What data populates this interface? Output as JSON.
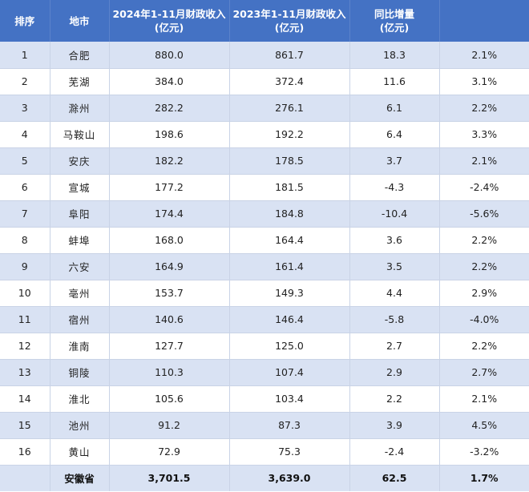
{
  "headers": {
    "rank": "排序",
    "city": "地市",
    "rev2024_line1": "2024年1-11月财政收入",
    "rev2024_line2": "(亿元)",
    "rev2023_line1": "2023年1-11月财政收入",
    "rev2023_line2": "(亿元)",
    "increase_line1": "同比增量",
    "increase_line2": "(亿元)",
    "growth": ""
  },
  "rows": [
    {
      "rank": "1",
      "city": "合肥",
      "rev2024": "880.0",
      "rev2023": "861.7",
      "increase": "18.3",
      "growth": "2.1%"
    },
    {
      "rank": "2",
      "city": "芜湖",
      "rev2024": "384.0",
      "rev2023": "372.4",
      "increase": "11.6",
      "growth": "3.1%"
    },
    {
      "rank": "3",
      "city": "滁州",
      "rev2024": "282.2",
      "rev2023": "276.1",
      "increase": "6.1",
      "growth": "2.2%"
    },
    {
      "rank": "4",
      "city": "马鞍山",
      "rev2024": "198.6",
      "rev2023": "192.2",
      "increase": "6.4",
      "growth": "3.3%"
    },
    {
      "rank": "5",
      "city": "安庆",
      "rev2024": "182.2",
      "rev2023": "178.5",
      "increase": "3.7",
      "growth": "2.1%"
    },
    {
      "rank": "6",
      "city": "宣城",
      "rev2024": "177.2",
      "rev2023": "181.5",
      "increase": "-4.3",
      "growth": "-2.4%"
    },
    {
      "rank": "7",
      "city": "阜阳",
      "rev2024": "174.4",
      "rev2023": "184.8",
      "increase": "-10.4",
      "growth": "-5.6%"
    },
    {
      "rank": "8",
      "city": "蚌埠",
      "rev2024": "168.0",
      "rev2023": "164.4",
      "increase": "3.6",
      "growth": "2.2%"
    },
    {
      "rank": "9",
      "city": "六安",
      "rev2024": "164.9",
      "rev2023": "161.4",
      "increase": "3.5",
      "growth": "2.2%"
    },
    {
      "rank": "10",
      "city": "亳州",
      "rev2024": "153.7",
      "rev2023": "149.3",
      "increase": "4.4",
      "growth": "2.9%"
    },
    {
      "rank": "11",
      "city": "宿州",
      "rev2024": "140.6",
      "rev2023": "146.4",
      "increase": "-5.8",
      "growth": "-4.0%"
    },
    {
      "rank": "12",
      "city": "淮南",
      "rev2024": "127.7",
      "rev2023": "125.0",
      "increase": "2.7",
      "growth": "2.2%"
    },
    {
      "rank": "13",
      "city": "铜陵",
      "rev2024": "110.3",
      "rev2023": "107.4",
      "increase": "2.9",
      "growth": "2.7%"
    },
    {
      "rank": "14",
      "city": "淮北",
      "rev2024": "105.6",
      "rev2023": "103.4",
      "increase": "2.2",
      "growth": "2.1%"
    },
    {
      "rank": "15",
      "city": "池州",
      "rev2024": "91.2",
      "rev2023": "87.3",
      "increase": "3.9",
      "growth": "4.5%"
    },
    {
      "rank": "16",
      "city": "黄山",
      "rev2024": "72.9",
      "rev2023": "75.3",
      "increase": "-2.4",
      "growth": "-3.2%"
    }
  ],
  "total": {
    "rank": "",
    "city": "安徽省",
    "rev2024": "3,701.5",
    "rev2023": "3,639.0",
    "increase": "62.5",
    "growth": "1.7%"
  }
}
